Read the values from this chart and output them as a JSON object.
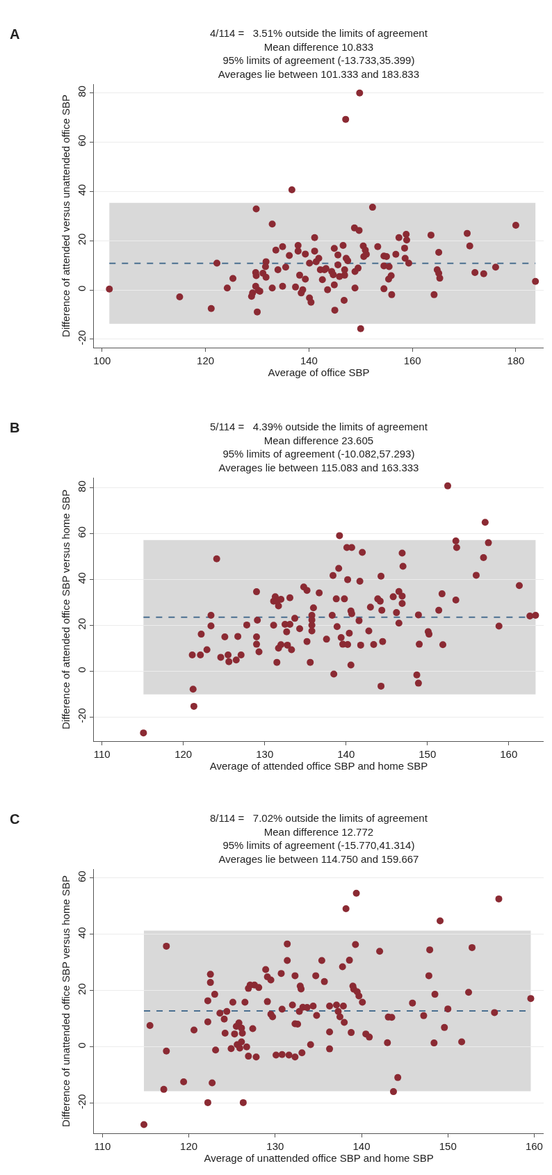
{
  "chart_data": [
    {
      "type": "scatter",
      "title": "4/114 =   3.51% outside the limits of agreement\nMean difference 10.833\n95% limits of agreement (-13.733,35.399)\nAverages lie between 101.333 and 183.833",
      "xlabel": "Average of office SBP",
      "ylabel": "Difference of attended versus unattended office SBP",
      "annotations": [
        "A"
      ],
      "color": "#8b2a33",
      "marker": "circle",
      "grid": "y",
      "xlim": [
        98.4,
        185.4
      ],
      "ylim": [
        -23.4,
        83.6
      ],
      "xticks": [
        100,
        120,
        140,
        160,
        180
      ],
      "yticks": [
        -20,
        0,
        20,
        40,
        60,
        80
      ],
      "ref_lines": [
        {
          "axis": "y",
          "value": 10.833,
          "line_style": "dashed",
          "color": "#4a6f90"
        }
      ],
      "bands": [
        {
          "axis": "y",
          "from": -13.733,
          "to": 35.399,
          "color": "#d9d9d9"
        }
      ],
      "x": [
        101.4,
        115.0,
        121.1,
        122.2,
        124.2,
        125.3,
        129.8,
        129.7,
        129.8,
        129.7,
        129.1,
        128.9,
        130.2,
        130.5,
        130.0,
        131.7,
        131.6,
        131.7,
        131.1,
        132.9,
        132.9,
        133.6,
        134.0,
        134.9,
        134.9,
        135.5,
        136.2,
        136.7,
        137.4,
        137.9,
        137.9,
        138.2,
        138.5,
        138.8,
        139.3,
        139.3,
        140.1,
        140.1,
        140.4,
        141.1,
        141.1,
        141.4,
        141.9,
        142.2,
        142.6,
        143.0,
        143.3,
        143.6,
        144.4,
        144.9,
        144.9,
        145.0,
        144.7,
        145.6,
        145.6,
        145.9,
        146.6,
        146.9,
        146.9,
        146.8,
        147.2,
        147.5,
        147.1,
        148.8,
        149.7,
        148.9,
        149.5,
        148.9,
        149.8,
        150.0,
        150.5,
        150.6,
        150.9,
        151.1,
        152.3,
        153.3,
        154.5,
        155.0,
        154.5,
        154.5,
        155.5,
        155.9,
        155.4,
        156.0,
        156.8,
        157.4,
        158.8,
        158.9,
        158.5,
        158.6,
        159.3,
        163.6,
        165.1,
        164.8,
        165.1,
        165.3,
        164.2,
        170.6,
        171.1,
        172.1,
        173.8,
        176.1,
        180.0,
        183.8
      ],
      "values": [
        0.4,
        -2.8,
        -7.5,
        10.9,
        0.8,
        4.7,
        32.9,
        7.1,
        5.8,
        1.5,
        -1.2,
        -2.6,
        -0.1,
        -0.5,
        -8.9,
        11.5,
        9.5,
        5.2,
        6.8,
        26.8,
        0.8,
        16.2,
        8.2,
        17.6,
        1.5,
        9.3,
        14.0,
        40.7,
        1.2,
        18.1,
        15.8,
        6.0,
        -1.2,
        0.1,
        14.6,
        4.4,
        10.9,
        -3.2,
        -5.0,
        21.3,
        15.8,
        11.5,
        12.9,
        8.2,
        4.2,
        8.2,
        8.7,
        0.1,
        7.5,
        16.9,
        2.1,
        -8.2,
        6.2,
        14.2,
        10.2,
        5.5,
        18.1,
        8.2,
        6.0,
        -4.2,
        12.9,
        11.9,
        69.3,
        25.2,
        24.2,
        7.5,
        8.9,
        0.8,
        80.0,
        -15.7,
        17.9,
        13.6,
        16.2,
        14.5,
        33.6,
        17.6,
        13.8,
        13.6,
        9.8,
        0.5,
        9.5,
        5.8,
        4.4,
        -1.9,
        14.5,
        21.3,
        22.6,
        20.3,
        17.0,
        12.9,
        10.9,
        22.3,
        15.3,
        8.2,
        6.8,
        4.8,
        -1.9,
        23.0,
        17.9,
        7.1,
        6.6,
        9.3,
        26.3,
        3.5
      ]
    },
    {
      "type": "scatter",
      "title": "5/114 =   4.39% outside the limits of agreement\nMean difference 23.605\n95% limits of agreement (-10.082,57.293)\nAverages lie between 115.083 and 163.333",
      "xlabel": "Average of attended office SBP and home SBP",
      "ylabel": "Difference of attended office SBP versus home SBP",
      "annotations": [
        "B"
      ],
      "color": "#8b2a33",
      "marker": "circle",
      "grid": "y",
      "xlim": [
        109.0,
        164.3
      ],
      "ylim": [
        -30.5,
        84.5
      ],
      "xticks": [
        110,
        120,
        130,
        140,
        150,
        160
      ],
      "yticks": [
        -20,
        0,
        20,
        40,
        60,
        80
      ],
      "ref_lines": [
        {
          "axis": "y",
          "value": 23.605,
          "line_style": "dashed",
          "color": "#4a6f90"
        }
      ],
      "bands": [
        {
          "axis": "y",
          "from": -10.082,
          "to": 57.293,
          "color": "#d9d9d9"
        }
      ],
      "x": [
        115.1,
        121.1,
        121.2,
        121.3,
        122.1,
        122.2,
        122.9,
        123.4,
        123.4,
        124.1,
        124.6,
        125.1,
        125.5,
        125.6,
        126.5,
        126.7,
        127.1,
        127.8,
        129.0,
        129.0,
        129.0,
        129.1,
        129.3,
        131.1,
        131.1,
        131.3,
        131.5,
        131.7,
        132.0,
        131.5,
        131.7,
        132.0,
        132.5,
        132.7,
        132.8,
        133.1,
        133.1,
        133.3,
        133.7,
        134.3,
        134.8,
        135.2,
        135.2,
        135.6,
        135.8,
        135.8,
        135.8,
        135.8,
        136.0,
        136.7,
        137.6,
        138.3,
        138.4,
        138.5,
        138.8,
        138.9,
        139.1,
        139.2,
        139.4,
        139.6,
        139.8,
        140.2,
        140.1,
        140.2,
        140.4,
        140.6,
        140.7,
        140.6,
        140.7,
        141.6,
        141.7,
        141.8,
        142.0,
        142.8,
        143.0,
        143.4,
        143.9,
        144.2,
        144.3,
        144.4,
        144.3,
        144.5,
        145.8,
        146.2,
        146.5,
        146.5,
        146.9,
        146.9,
        146.9,
        147.0,
        148.7,
        148.9,
        148.9,
        149.0,
        150.1,
        150.2,
        151.8,
        151.4,
        151.9,
        152.5,
        153.5,
        153.6,
        153.5,
        156.0,
        156.9,
        157.1,
        157.5,
        158.8,
        161.3,
        162.6,
        163.3
      ],
      "values": [
        -26.9,
        7.1,
        -7.8,
        -15.3,
        7.1,
        16.2,
        9.4,
        24.4,
        19.8,
        49.1,
        6.1,
        15.0,
        7.1,
        4.2,
        4.9,
        15.2,
        7.1,
        20.2,
        34.7,
        15.0,
        11.8,
        22.3,
        8.5,
        20.1,
        30.6,
        32.5,
        30.5,
        28.5,
        31.4,
        3.9,
        10.1,
        11.6,
        20.5,
        17.2,
        11.4,
        20.5,
        32.1,
        9.4,
        23.1,
        18.6,
        36.8,
        35.3,
        13.0,
        3.9,
        24.4,
        22.4,
        20.1,
        17.6,
        27.7,
        34.2,
        14.0,
        24.4,
        41.8,
        -1.2,
        31.6,
        19.5,
        44.9,
        59.2,
        14.7,
        11.8,
        31.6,
        11.7,
        54.0,
        40.0,
        16.6,
        2.7,
        54.0,
        26.3,
        25.1,
        22.1,
        39.3,
        11.4,
        51.9,
        17.6,
        28.0,
        11.7,
        31.6,
        30.6,
        41.5,
        26.6,
        -6.5,
        13.0,
        32.5,
        25.6,
        34.8,
        21.0,
        51.6,
        32.8,
        29.6,
        45.8,
        -1.6,
        24.6,
        -5.2,
        11.8,
        17.3,
        16.2,
        33.8,
        26.6,
        11.6,
        80.9,
        56.9,
        54.0,
        31.1,
        41.9,
        49.6,
        65.0,
        56.1,
        19.7,
        37.4,
        24.1,
        24.4
      ]
    },
    {
      "type": "scatter",
      "title": "8/114 =   7.02% outside the limits of agreement\nMean difference 12.772\n95% limits of agreement (-15.770,41.314)\nAverages lie between 114.750 and 159.667",
      "xlabel": "Average of unattended office SBP and home SBP",
      "ylabel": "Difference of unattended office SBP versus home SBP",
      "annotations": [
        "C"
      ],
      "color": "#8b2a33",
      "marker": "circle",
      "grid": "y",
      "xlim": [
        109.0,
        161.1
      ],
      "ylim": [
        -30.7,
        63.2
      ],
      "xticks": [
        110,
        120,
        130,
        140,
        150,
        160
      ],
      "yticks": [
        -20,
        0,
        20,
        40,
        60
      ],
      "ref_lines": [
        {
          "axis": "y",
          "value": 12.772,
          "line_style": "dashed",
          "color": "#4a6f90"
        }
      ],
      "bands": [
        {
          "axis": "y",
          "from": -15.77,
          "to": 41.314,
          "color": "#d9d9d9"
        }
      ],
      "x": [
        114.8,
        115.5,
        117.1,
        117.4,
        117.4,
        119.4,
        120.6,
        122.2,
        122.2,
        122.2,
        122.5,
        122.5,
        122.7,
        123.0,
        123.1,
        123.6,
        124.1,
        124.2,
        124.4,
        124.9,
        125.1,
        125.3,
        125.5,
        125.6,
        125.8,
        125.9,
        126.1,
        126.1,
        126.2,
        126.3,
        126.5,
        126.7,
        126.9,
        126.9,
        127.1,
        127.4,
        127.6,
        127.8,
        128.1,
        128.9,
        129.1,
        129.1,
        129.5,
        129.5,
        129.7,
        130.1,
        130.7,
        130.8,
        130.8,
        131.4,
        131.4,
        131.6,
        132.0,
        132.3,
        132.3,
        132.3,
        132.6,
        132.9,
        133.0,
        132.8,
        133.1,
        133.2,
        133.7,
        134.1,
        134.4,
        134.7,
        134.8,
        135.4,
        135.7,
        136.3,
        136.3,
        136.3,
        137.1,
        137.3,
        137.5,
        137.8,
        137.9,
        138.0,
        138.2,
        138.6,
        138.8,
        139.0,
        139.1,
        139.3,
        139.4,
        139.5,
        139.7,
        140.1,
        140.5,
        140.9,
        142.1,
        143.0,
        143.1,
        143.5,
        143.7,
        144.2,
        145.9,
        147.2,
        147.9,
        147.8,
        148.5,
        148.4,
        149.1,
        149.6,
        150.0,
        151.6,
        152.4,
        152.8,
        155.4,
        155.9,
        159.6
      ],
      "values": [
        -27.6,
        7.6,
        -15.1,
        -1.5,
        35.8,
        -12.4,
        6.0,
        -19.8,
        8.9,
        16.4,
        25.8,
        22.9,
        -12.8,
        18.7,
        -1.1,
        12.0,
        9.9,
        4.9,
        12.6,
        -0.6,
        15.9,
        4.6,
        7.3,
        0.8,
        8.5,
        -0.4,
        6.7,
        1.8,
        4.9,
        -19.8,
        15.9,
        0.0,
        -3.3,
        20.8,
        22.0,
        6.5,
        22.0,
        -3.6,
        21.1,
        27.5,
        16.1,
        24.9,
        23.8,
        11.6,
        10.7,
        -2.9,
        26.1,
        13.4,
        -2.7,
        36.6,
        30.7,
        -2.9,
        14.9,
        -3.6,
        25.3,
        8.2,
        8.1,
        21.6,
        20.6,
        12.6,
        -2.1,
        14.1,
        14.0,
        0.8,
        14.5,
        25.3,
        11.2,
        30.7,
        23.2,
        14.5,
        5.3,
        -0.7,
        14.9,
        12.6,
        10.7,
        28.5,
        14.5,
        8.7,
        49.1,
        30.8,
        5.1,
        21.6,
        20.5,
        36.4,
        54.6,
        19.6,
        18.1,
        15.9,
        4.6,
        3.5,
        34.0,
        1.5,
        10.6,
        10.5,
        -15.9,
        -10.9,
        15.6,
        11.1,
        34.5,
        25.3,
        18.7,
        1.4,
        44.8,
        6.9,
        13.5,
        1.8,
        19.4,
        35.3,
        12.2,
        52.6,
        17.2
      ]
    }
  ]
}
